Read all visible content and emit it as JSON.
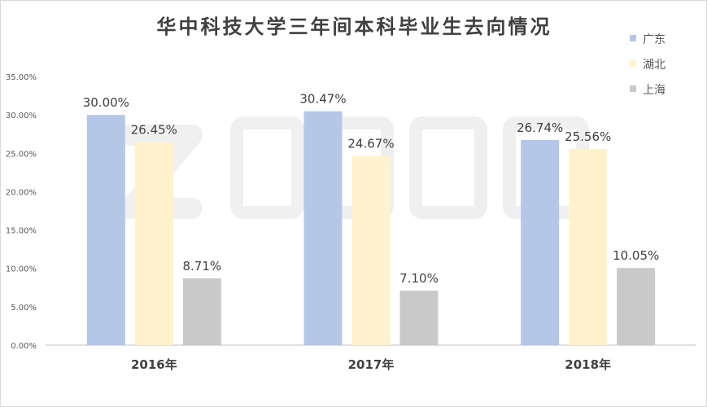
{
  "chart_data": {
    "type": "bar",
    "title": "华中科技大学三年间本科毕业生去向情况",
    "categories": [
      "2016年",
      "2017年",
      "2018年"
    ],
    "series": [
      {
        "name": "广东",
        "values": [
          30.0,
          30.47,
          26.74
        ],
        "labels": [
          "30.00%",
          "30.47%",
          "26.74%"
        ],
        "color": "#b4c7e7"
      },
      {
        "name": "湖北",
        "values": [
          26.45,
          24.67,
          25.56
        ],
        "labels": [
          "26.45%",
          "24.67%",
          "25.56%"
        ],
        "color": "#fff2cc"
      },
      {
        "name": "上海",
        "values": [
          8.71,
          7.1,
          10.05
        ],
        "labels": [
          "8.71%",
          "7.10%",
          "10.05%"
        ],
        "color": "#c9c9c9"
      }
    ],
    "y_ticks": [
      "0.00%",
      "5.00%",
      "10.00%",
      "15.00%",
      "20.00%",
      "25.00%",
      "30.00%",
      "35.00%"
    ],
    "ylim": [
      0,
      35
    ],
    "grid": false,
    "legend_position": "top-right"
  }
}
